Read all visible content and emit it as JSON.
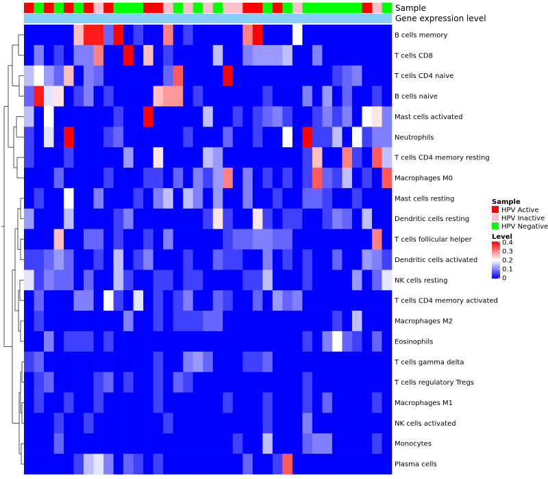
{
  "chart_data": {
    "type": "heatmap",
    "title": "",
    "annotation_labels": [
      "Sample",
      "Gene expression level"
    ],
    "gene_expression_color": "#87cefa",
    "sample_legend": {
      "title": "Sample",
      "entries": [
        {
          "label": "HPV Active",
          "color": "#ff0000"
        },
        {
          "label": "HPV Inactive",
          "color": "#ffc0cb"
        },
        {
          "label": "HPV Negative",
          "color": "#00ff00"
        }
      ]
    },
    "level_legend": {
      "title": "Level",
      "ticks": [
        "0.4",
        "0.3",
        "0.2",
        "0.1",
        "0"
      ],
      "range": [
        0,
        0.4
      ],
      "colors": [
        "#0000ff",
        "#ffffff",
        "#ff0000"
      ]
    },
    "samples": [
      "A",
      "N",
      "A",
      "N",
      "A",
      "N",
      "A",
      "I",
      "A",
      "N",
      "N",
      "N",
      "A",
      "A",
      "I",
      "N",
      "I",
      "N",
      "I",
      "N",
      "I",
      "I",
      "A",
      "A",
      "N",
      "A",
      "N",
      "I",
      "N",
      "N",
      "N",
      "N",
      "N",
      "N",
      "A",
      "I",
      "N"
    ],
    "rows": [
      "B cells memory",
      "T cells CD8",
      "T cells CD4 naive",
      "B cells naive",
      "Mast cells activated",
      "Neutrophils",
      "T cells CD4 memory resting",
      "Macrophages M0",
      "Mast cells resting",
      "Dendritic cells resting",
      "T cells follicular helper",
      "Dendritic cells activated",
      "NK cells resting",
      "T cells CD4 memory activated",
      "Macrophages M2",
      "Eosinophils",
      "T cells gamma delta",
      "T cells regulatory  Tregs",
      "Macrophages M1",
      "NK cells activated",
      "Monocytes",
      "Plasma cells"
    ],
    "values": [
      [
        0.0,
        0.0,
        0.0,
        0.0,
        0.0,
        0.25,
        0.38,
        0.38,
        0.08,
        0.4,
        0.0,
        0.05,
        0.0,
        0.0,
        0.3,
        0.0,
        0.05,
        0.0,
        0.0,
        0.0,
        0.0,
        0.0,
        0.3,
        0.4,
        0.0,
        0.0,
        0.0,
        0.2,
        0.0,
        0.0,
        0.0,
        0.0,
        0.0,
        0.0,
        0.0,
        0.0,
        0.0
      ],
      [
        0.0,
        0.1,
        0.0,
        0.05,
        0.0,
        0.1,
        0.1,
        0.3,
        0.0,
        0.0,
        0.4,
        0.0,
        0.25,
        0.0,
        0.05,
        0.0,
        0.0,
        0.0,
        0.0,
        0.15,
        0.0,
        0.0,
        0.1,
        0.12,
        0.12,
        0.12,
        0.15,
        0.0,
        0.0,
        0.1,
        0.0,
        0.0,
        0.0,
        0.0,
        0.0,
        0.0,
        0.0
      ],
      [
        0.15,
        0.2,
        0.12,
        0.08,
        0.25,
        0.0,
        0.1,
        0.08,
        0.0,
        0.0,
        0.0,
        0.0,
        0.0,
        0.0,
        0.08,
        0.33,
        0.0,
        0.0,
        0.0,
        0.0,
        0.4,
        0.0,
        0.0,
        0.0,
        0.0,
        0.0,
        0.0,
        0.0,
        0.0,
        0.0,
        0.0,
        0.05,
        0.08,
        0.1,
        0.0,
        0.0,
        0.0
      ],
      [
        0.08,
        0.38,
        0.18,
        0.22,
        0.0,
        0.05,
        0.1,
        0.0,
        0.05,
        0.0,
        0.0,
        0.0,
        0.0,
        0.25,
        0.28,
        0.28,
        0.0,
        0.05,
        0.0,
        0.0,
        0.0,
        0.0,
        0.0,
        0.0,
        0.05,
        0.0,
        0.0,
        0.0,
        0.1,
        0.0,
        0.12,
        0.0,
        0.08,
        0.0,
        0.0,
        0.05,
        0.0
      ],
      [
        0.15,
        0.0,
        0.2,
        0.0,
        0.0,
        0.0,
        0.0,
        0.0,
        0.0,
        0.05,
        0.0,
        0.0,
        0.4,
        0.0,
        0.0,
        0.0,
        0.0,
        0.0,
        0.15,
        0.0,
        0.0,
        0.05,
        0.0,
        0.05,
        0.08,
        0.1,
        0.05,
        0.0,
        0.0,
        0.05,
        0.1,
        0.05,
        0.1,
        0.0,
        0.2,
        0.22,
        0.1
      ],
      [
        0.05,
        0.0,
        0.18,
        0.0,
        0.4,
        0.0,
        0.0,
        0.0,
        0.05,
        0.08,
        0.0,
        0.0,
        0.0,
        0.0,
        0.0,
        0.0,
        0.05,
        0.0,
        0.0,
        0.0,
        0.08,
        0.0,
        0.0,
        0.05,
        0.0,
        0.0,
        0.2,
        0.0,
        0.4,
        0.05,
        0.05,
        0.15,
        0.0,
        0.2,
        0.05,
        0.1,
        0.1
      ],
      [
        0.05,
        0.0,
        0.0,
        0.0,
        0.05,
        0.0,
        0.0,
        0.0,
        0.0,
        0.0,
        0.12,
        0.0,
        0.0,
        0.22,
        0.0,
        0.0,
        0.0,
        0.0,
        0.15,
        0.12,
        0.0,
        0.0,
        0.0,
        0.0,
        0.0,
        0.0,
        0.0,
        0.0,
        0.05,
        0.25,
        0.0,
        0.0,
        0.3,
        0.05,
        0.0,
        0.33,
        0.15
      ],
      [
        0.0,
        0.0,
        0.0,
        0.08,
        0.0,
        0.0,
        0.0,
        0.0,
        0.05,
        0.0,
        0.0,
        0.0,
        0.05,
        0.05,
        0.0,
        0.08,
        0.0,
        0.1,
        0.05,
        0.12,
        0.3,
        0.0,
        0.1,
        0.0,
        0.05,
        0.0,
        0.05,
        0.0,
        0.05,
        0.33,
        0.08,
        0.05,
        0.15,
        0.0,
        0.05,
        0.0,
        0.33
      ],
      [
        0.0,
        0.05,
        0.0,
        0.0,
        0.2,
        0.0,
        0.0,
        0.1,
        0.0,
        0.0,
        0.0,
        0.05,
        0.0,
        0.1,
        0.15,
        0.0,
        0.15,
        0.1,
        0.0,
        0.12,
        0.0,
        0.0,
        0.1,
        0.0,
        0.0,
        0.05,
        0.0,
        0.0,
        0.08,
        0.08,
        0.05,
        0.0,
        0.0,
        0.05,
        0.0,
        0.0,
        0.0
      ],
      [
        0.12,
        0.0,
        0.0,
        0.0,
        0.15,
        0.0,
        0.0,
        0.0,
        0.0,
        0.05,
        0.1,
        0.0,
        0.0,
        0.0,
        0.0,
        0.0,
        0.0,
        0.0,
        0.05,
        0.22,
        0.05,
        0.0,
        0.0,
        0.22,
        0.05,
        0.0,
        0.05,
        0.05,
        0.0,
        0.0,
        0.05,
        0.1,
        0.08,
        0.0,
        0.15,
        0.0,
        0.0
      ],
      [
        0.0,
        0.0,
        0.0,
        0.25,
        0.0,
        0.0,
        0.08,
        0.08,
        0.0,
        0.05,
        0.0,
        0.0,
        0.05,
        0.0,
        0.1,
        0.0,
        0.0,
        0.0,
        0.0,
        0.0,
        0.05,
        0.08,
        0.08,
        0.1,
        0.1,
        0.08,
        0.08,
        0.0,
        0.0,
        0.0,
        0.0,
        0.0,
        0.0,
        0.0,
        0.0,
        0.3,
        0.0
      ],
      [
        0.05,
        0.05,
        0.08,
        0.12,
        0.08,
        0.0,
        0.0,
        0.05,
        0.0,
        0.15,
        0.0,
        0.05,
        0.1,
        0.0,
        0.0,
        0.0,
        0.05,
        0.0,
        0.0,
        0.08,
        0.05,
        0.05,
        0.0,
        0.0,
        0.1,
        0.0,
        0.05,
        0.0,
        0.05,
        0.0,
        0.0,
        0.08,
        0.0,
        0.0,
        0.12,
        0.1,
        0.05
      ],
      [
        0.18,
        0.05,
        0.1,
        0.08,
        0.08,
        0.0,
        0.08,
        0.0,
        0.0,
        0.15,
        0.05,
        0.0,
        0.0,
        0.05,
        0.05,
        0.0,
        0.05,
        0.05,
        0.0,
        0.0,
        0.0,
        0.0,
        0.05,
        0.05,
        0.15,
        0.0,
        0.0,
        0.0,
        0.05,
        0.0,
        0.0,
        0.0,
        0.0,
        0.12,
        0.0,
        0.08,
        0.18
      ],
      [
        0.0,
        0.08,
        0.0,
        0.0,
        0.0,
        0.1,
        0.1,
        0.0,
        0.2,
        0.05,
        0.0,
        0.18,
        0.0,
        0.05,
        0.0,
        0.05,
        0.1,
        0.0,
        0.0,
        0.08,
        0.05,
        0.0,
        0.0,
        0.08,
        0.0,
        0.12,
        0.08,
        0.1,
        0.0,
        0.0,
        0.0,
        0.0,
        0.0,
        0.0,
        0.0,
        0.0,
        0.0
      ],
      [
        0.0,
        0.05,
        0.0,
        0.0,
        0.0,
        0.0,
        0.0,
        0.0,
        0.0,
        0.0,
        0.1,
        0.0,
        0.0,
        0.05,
        0.0,
        0.05,
        0.05,
        0.05,
        0.08,
        0.08,
        0.0,
        0.0,
        0.0,
        0.0,
        0.0,
        0.0,
        0.0,
        0.0,
        0.0,
        0.0,
        0.0,
        0.05,
        0.0,
        0.15,
        0.0,
        0.0,
        0.0
      ],
      [
        0.0,
        0.0,
        0.1,
        0.0,
        0.05,
        0.05,
        0.05,
        0.0,
        0.05,
        0.0,
        0.0,
        0.0,
        0.0,
        0.0,
        0.0,
        0.0,
        0.0,
        0.0,
        0.0,
        0.0,
        0.0,
        0.0,
        0.0,
        0.0,
        0.0,
        0.0,
        0.0,
        0.0,
        0.05,
        0.0,
        0.1,
        0.2,
        0.08,
        0.05,
        0.0,
        0.08,
        0.0
      ],
      [
        0.05,
        0.08,
        0.0,
        0.0,
        0.0,
        0.0,
        0.0,
        0.0,
        0.0,
        0.0,
        0.0,
        0.0,
        0.0,
        0.05,
        0.0,
        0.0,
        0.1,
        0.12,
        0.08,
        0.0,
        0.0,
        0.0,
        0.05,
        0.05,
        0.08,
        0.0,
        0.0,
        0.0,
        0.0,
        0.0,
        0.0,
        0.0,
        0.0,
        0.0,
        0.0,
        0.0,
        0.0
      ],
      [
        0.0,
        0.05,
        0.08,
        0.0,
        0.0,
        0.0,
        0.0,
        0.05,
        0.08,
        0.0,
        0.05,
        0.0,
        0.0,
        0.05,
        0.0,
        0.08,
        0.05,
        0.0,
        0.0,
        0.0,
        0.0,
        0.0,
        0.0,
        0.0,
        0.0,
        0.0,
        0.0,
        0.0,
        0.05,
        0.0,
        0.0,
        0.0,
        0.0,
        0.0,
        0.0,
        0.0,
        0.0
      ],
      [
        0.0,
        0.05,
        0.0,
        0.0,
        0.05,
        0.0,
        0.0,
        0.05,
        0.0,
        0.0,
        0.0,
        0.0,
        0.0,
        0.05,
        0.0,
        0.0,
        0.0,
        0.0,
        0.0,
        0.0,
        0.05,
        0.0,
        0.0,
        0.0,
        0.05,
        0.0,
        0.0,
        0.0,
        0.05,
        0.0,
        0.08,
        0.0,
        0.0,
        0.0,
        0.0,
        0.05,
        0.0
      ],
      [
        0.0,
        0.0,
        0.0,
        0.05,
        0.0,
        0.0,
        0.05,
        0.0,
        0.0,
        0.0,
        0.0,
        0.0,
        0.0,
        0.0,
        0.05,
        0.0,
        0.0,
        0.0,
        0.0,
        0.0,
        0.0,
        0.0,
        0.0,
        0.0,
        0.05,
        0.0,
        0.0,
        0.0,
        0.1,
        0.0,
        0.0,
        0.0,
        0.0,
        0.0,
        0.0,
        0.0,
        0.0
      ],
      [
        0.0,
        0.0,
        0.0,
        0.08,
        0.0,
        0.0,
        0.0,
        0.0,
        0.0,
        0.0,
        0.0,
        0.0,
        0.0,
        0.0,
        0.0,
        0.0,
        0.0,
        0.0,
        0.0,
        0.0,
        0.0,
        0.05,
        0.0,
        0.0,
        0.15,
        0.0,
        0.0,
        0.0,
        0.08,
        0.1,
        0.1,
        0.0,
        0.0,
        0.0,
        0.0,
        0.05,
        0.0
      ],
      [
        0.0,
        0.0,
        0.0,
        0.0,
        0.0,
        0.05,
        0.15,
        0.18,
        0.1,
        0.0,
        0.08,
        0.05,
        0.0,
        0.05,
        0.0,
        0.0,
        0.0,
        0.0,
        0.0,
        0.0,
        0.0,
        0.0,
        0.08,
        0.0,
        0.0,
        0.05,
        0.33,
        0.0,
        0.0,
        0.0,
        0.0,
        0.0,
        0.0,
        0.0,
        0.0,
        0.0,
        0.0
      ]
    ]
  }
}
